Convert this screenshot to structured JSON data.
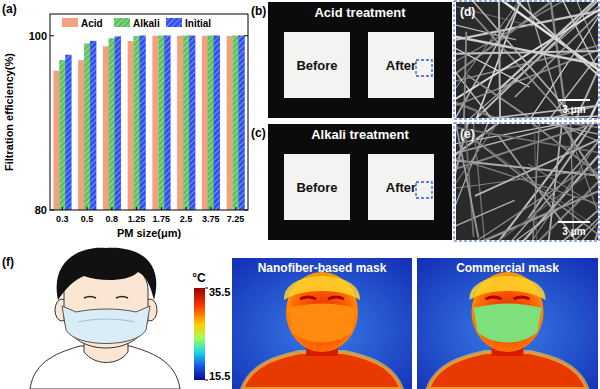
{
  "chart_data": {
    "type": "bar",
    "annotations": [
      "(a)"
    ],
    "x_label": "PM size(μm)",
    "y_label": "Filtration efficiency(%)",
    "categories": [
      "0.3",
      "0.5",
      "0.8",
      "1.25",
      "1.75",
      "2.5",
      "3.75",
      "7.25"
    ],
    "series": [
      {
        "name": "Acid",
        "color": "#f4a27e",
        "values": [
          96.0,
          97.2,
          98.8,
          99.4,
          100,
          100,
          100,
          100
        ]
      },
      {
        "name": "Alkali",
        "color": "#5cc35c",
        "values": [
          97.2,
          99.1,
          99.7,
          99.95,
          100,
          100,
          100,
          100
        ]
      },
      {
        "name": "Initial",
        "color": "#2f4ff0",
        "values": [
          97.8,
          99.4,
          99.9,
          100,
          100,
          100,
          100,
          100
        ]
      }
    ],
    "ylim": [
      80,
      102.5
    ],
    "yticks": [
      80,
      100
    ],
    "legend": "top-left",
    "grid": false
  },
  "panels": {
    "b": {
      "label": "(b)",
      "title": "Acid treatment",
      "before": "Before",
      "after": "After"
    },
    "c": {
      "label": "(c)",
      "title": "Alkali treatment",
      "before": "Before",
      "after": "After"
    },
    "d": {
      "label": "(d)",
      "scale_bar": "3 μm"
    },
    "e": {
      "label": "(e)",
      "scale_bar": "3 μm"
    },
    "f": {
      "label": "(f)",
      "colorbar": {
        "unit": "°C",
        "range": [
          15.5,
          35.5
        ],
        "ticks": [
          15.5,
          35.5
        ]
      },
      "images": [
        "Nanofiber-based mask",
        "Commercial mask"
      ]
    }
  }
}
